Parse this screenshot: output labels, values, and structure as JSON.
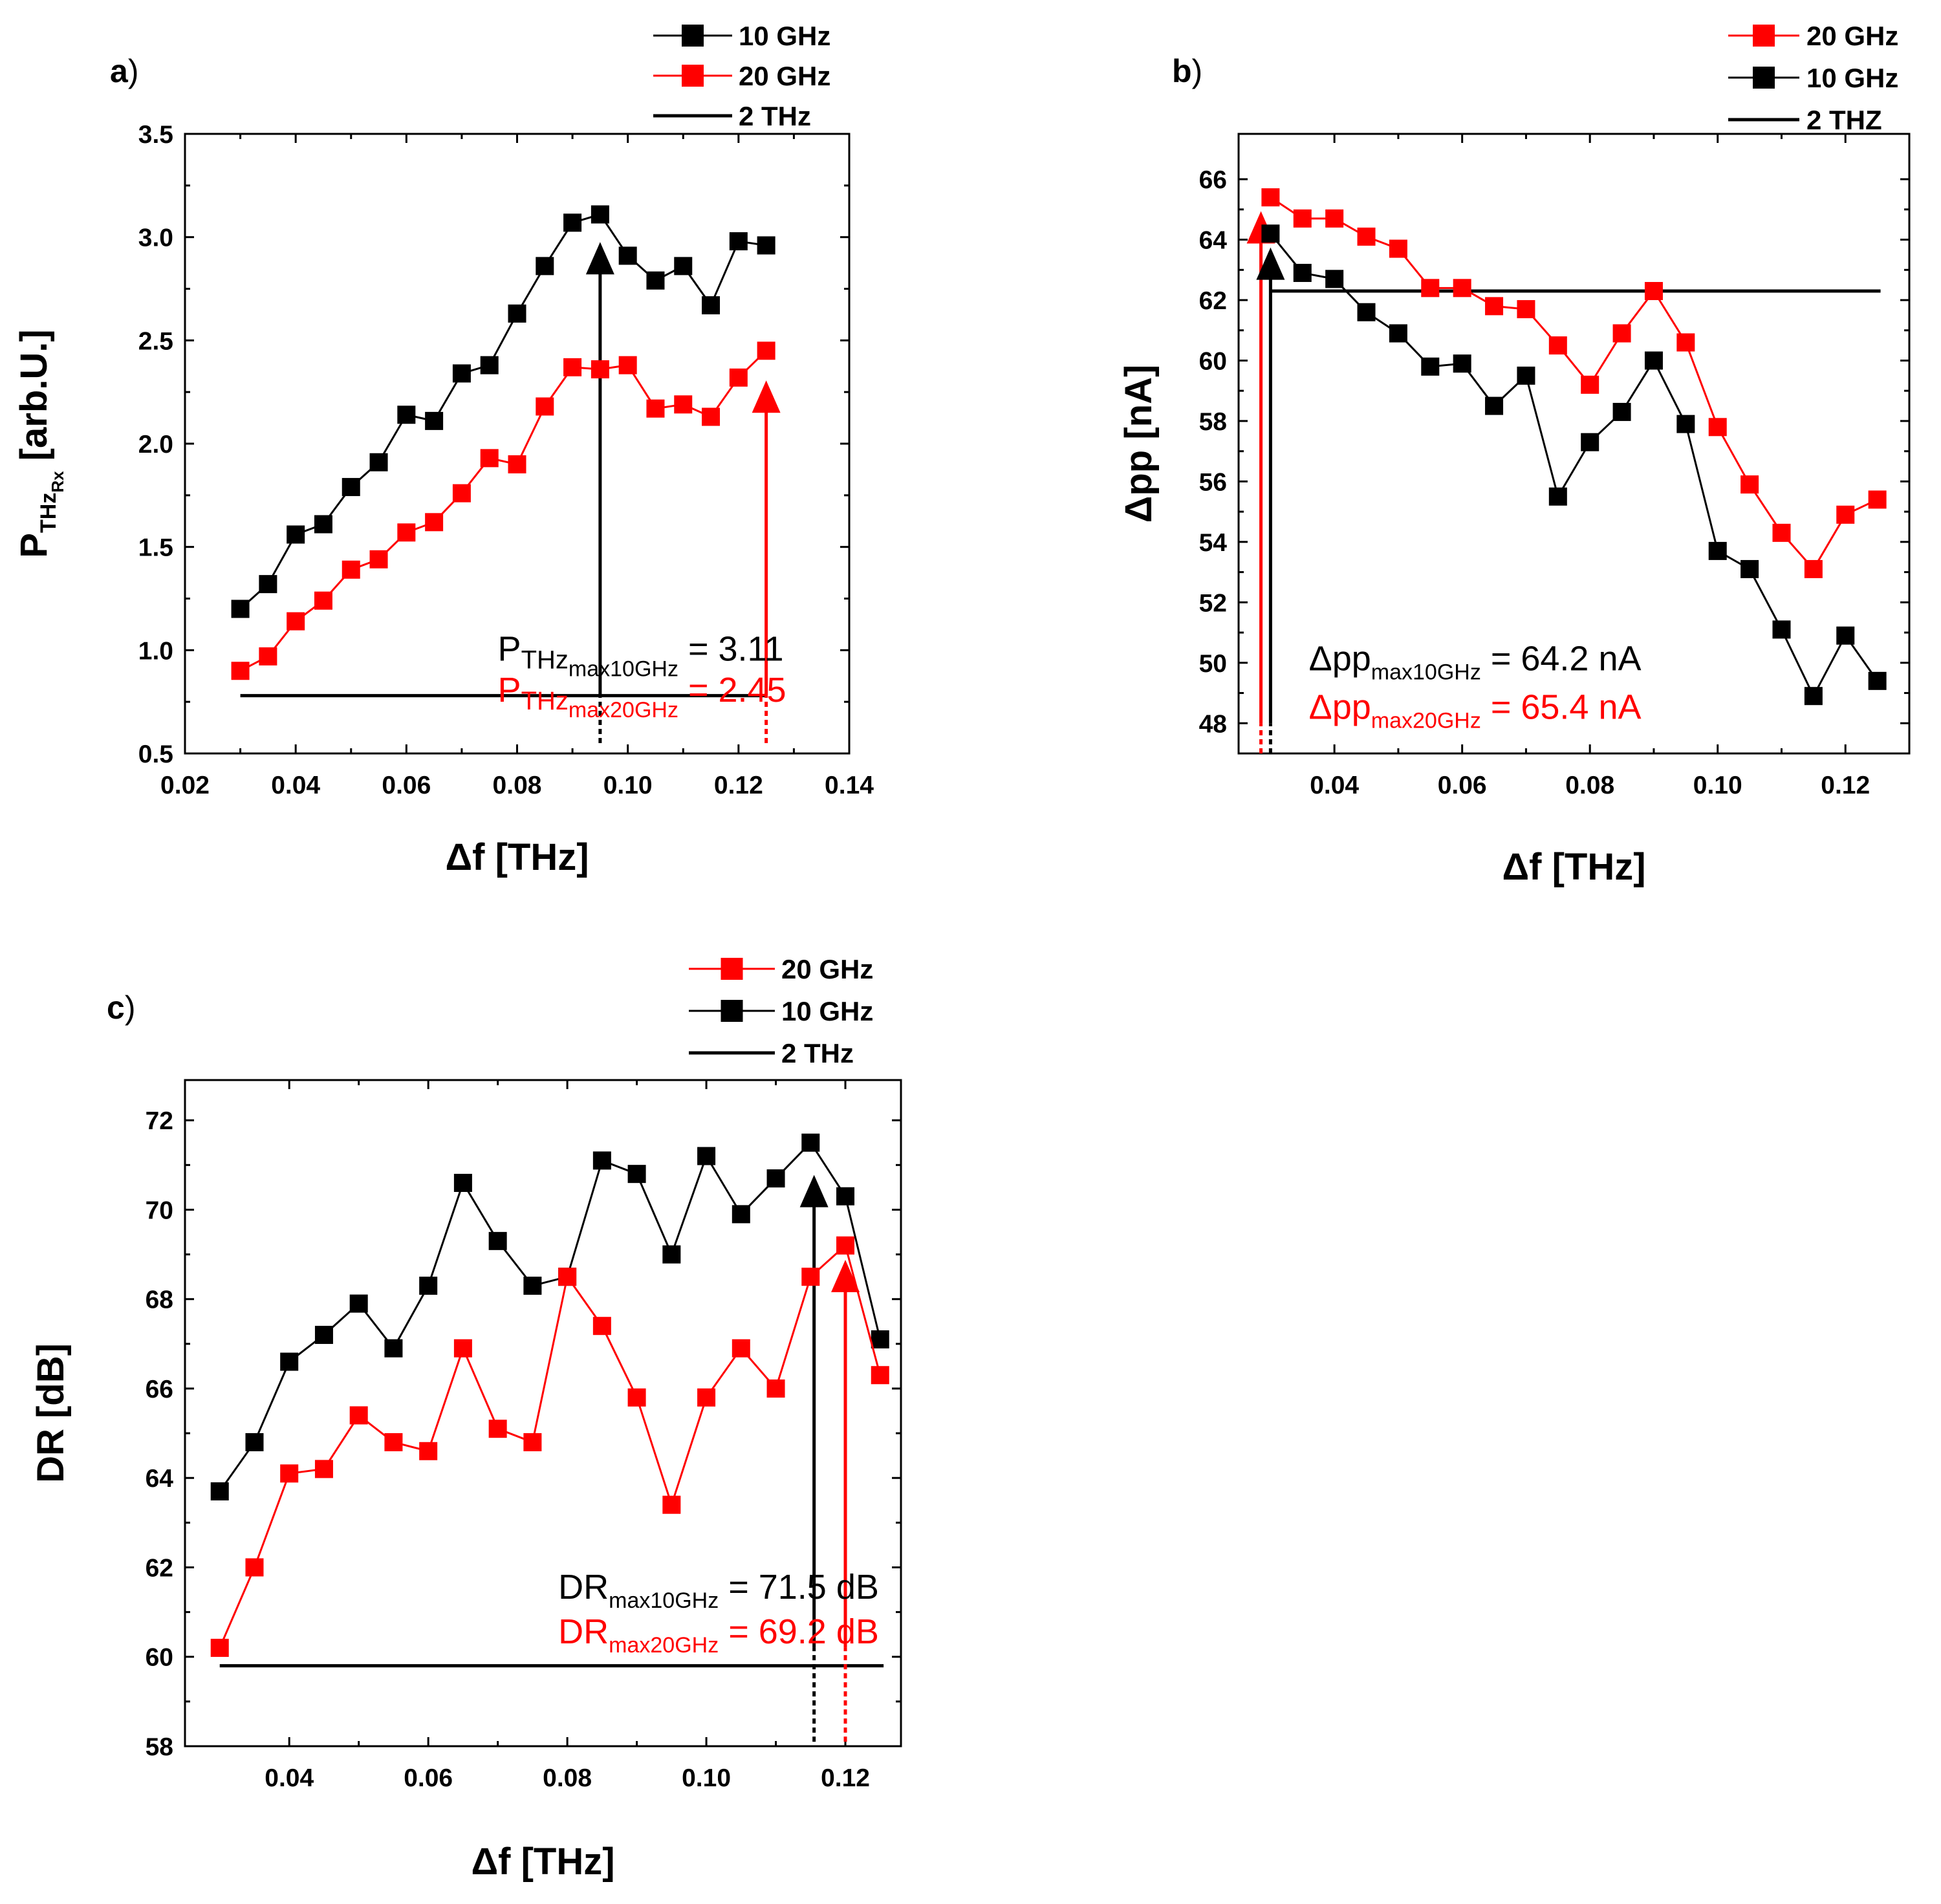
{
  "colors": {
    "black": "#000000",
    "red": "#ff0000"
  },
  "chart_data": [
    {
      "panel": "a",
      "panel_letter": "a",
      "panel_paren": ")",
      "type": "line",
      "xlabel": "Δf [THz]",
      "ylabel_parts": {
        "main": "P",
        "sub": "THz",
        "subsub": "Rx",
        "unit": " [arb.U.]"
      },
      "xlim": [
        0.02,
        0.14
      ],
      "ylim": [
        0.5,
        3.5
      ],
      "xticks": [
        "0.02",
        "0.04",
        "0.06",
        "0.08",
        "0.10",
        "0.12",
        "0.14"
      ],
      "yticks": [
        "0.5",
        "1.0",
        "1.5",
        "2.0",
        "2.5",
        "3.0",
        "3.5"
      ],
      "legend": [
        {
          "label": "10 GHz",
          "color": "#000000",
          "kind": "marker"
        },
        {
          "label": "20 GHz",
          "color": "#ff0000",
          "kind": "marker"
        },
        {
          "label": "2 THz",
          "color": "#000000",
          "kind": "line"
        }
      ],
      "series": [
        {
          "name": "10 GHz",
          "color": "#000000",
          "x": [
            0.03,
            0.035,
            0.04,
            0.045,
            0.05,
            0.055,
            0.06,
            0.065,
            0.07,
            0.075,
            0.08,
            0.085,
            0.09,
            0.095,
            0.1,
            0.105,
            0.11,
            0.115,
            0.12,
            0.125
          ],
          "y": [
            1.2,
            1.32,
            1.56,
            1.61,
            1.79,
            1.91,
            2.14,
            2.11,
            2.34,
            2.38,
            2.63,
            2.86,
            3.07,
            3.11,
            2.91,
            2.79,
            2.86,
            2.67,
            2.98,
            2.96
          ]
        },
        {
          "name": "20 GHz",
          "color": "#ff0000",
          "x": [
            0.03,
            0.035,
            0.04,
            0.045,
            0.05,
            0.055,
            0.06,
            0.065,
            0.07,
            0.075,
            0.08,
            0.085,
            0.09,
            0.095,
            0.1,
            0.105,
            0.11,
            0.115,
            0.12,
            0.125
          ],
          "y": [
            0.9,
            0.97,
            1.14,
            1.24,
            1.39,
            1.44,
            1.57,
            1.62,
            1.76,
            1.93,
            1.9,
            2.18,
            2.37,
            2.36,
            2.38,
            2.17,
            2.19,
            2.13,
            2.32,
            2.45
          ]
        }
      ],
      "hline": {
        "name": "2 THz",
        "y": 0.78,
        "x": [
          0.03,
          0.125
        ]
      },
      "arrows": [
        {
          "color": "#000000",
          "x": 0.095,
          "y_from": 0.78,
          "y_to": 2.97,
          "y_dash": 0.55
        },
        {
          "color": "#ff0000",
          "x": 0.125,
          "y_from": 0.78,
          "y_to": 2.3,
          "y_dash": 0.55
        }
      ],
      "annotations": [
        {
          "color": "#000000",
          "main": "P",
          "sub": "THz",
          "subsub": "max10GHz",
          "value": " = 3.11",
          "x": 0.0765,
          "y": 0.95
        },
        {
          "color": "#ff0000",
          "main": "P",
          "sub": "THz",
          "subsub": "max20GHz",
          "value": " = 2.45",
          "x": 0.0765,
          "y": 0.75
        }
      ]
    },
    {
      "panel": "b",
      "panel_letter": "b",
      "panel_paren": ")",
      "type": "line",
      "xlabel": "Δf [THz]",
      "ylabel": "Δpp [nA]",
      "xlim": [
        0.025,
        0.13
      ],
      "ylim": [
        47,
        67.5
      ],
      "xticks": [
        "0.04",
        "0.06",
        "0.08",
        "0.10",
        "0.12"
      ],
      "yticks": [
        "48",
        "50",
        "52",
        "54",
        "56",
        "58",
        "60",
        "62",
        "64",
        "66"
      ],
      "legend": [
        {
          "label": "20 GHz",
          "color": "#ff0000",
          "kind": "marker"
        },
        {
          "label": "10 GHz",
          "color": "#000000",
          "kind": "marker"
        },
        {
          "label": "2 THZ",
          "color": "#000000",
          "kind": "line"
        }
      ],
      "series": [
        {
          "name": "20 GHz",
          "color": "#ff0000",
          "x": [
            0.03,
            0.035,
            0.04,
            0.045,
            0.05,
            0.055,
            0.06,
            0.065,
            0.07,
            0.075,
            0.08,
            0.085,
            0.09,
            0.095,
            0.1,
            0.105,
            0.11,
            0.115,
            0.12,
            0.125
          ],
          "y": [
            65.4,
            64.7,
            64.7,
            64.1,
            63.7,
            62.4,
            62.4,
            61.8,
            61.7,
            60.5,
            59.2,
            60.9,
            62.3,
            60.6,
            57.8,
            55.9,
            54.3,
            53.1,
            54.9,
            55.4
          ]
        },
        {
          "name": "10 GHz",
          "color": "#000000",
          "x": [
            0.03,
            0.035,
            0.04,
            0.045,
            0.05,
            0.055,
            0.06,
            0.065,
            0.07,
            0.075,
            0.08,
            0.085,
            0.09,
            0.095,
            0.1,
            0.105,
            0.11,
            0.115,
            0.12,
            0.125
          ],
          "y": [
            64.2,
            62.9,
            62.7,
            61.6,
            60.9,
            59.8,
            59.9,
            58.5,
            59.5,
            55.5,
            57.3,
            58.3,
            60.0,
            57.9,
            53.7,
            53.1,
            51.1,
            48.9,
            50.9,
            49.4
          ]
        }
      ],
      "hline": {
        "name": "2 THZ",
        "y": 62.3,
        "x": [
          0.03,
          0.1255
        ]
      },
      "arrows": [
        {
          "color": "#ff0000",
          "x": 0.0285,
          "y_from": 48.0,
          "y_to": 64.9,
          "y_dash": 47.0
        },
        {
          "color": "#000000",
          "x": 0.03,
          "y_from": 48.0,
          "y_to": 63.7,
          "y_dash": 47.0
        }
      ],
      "annotations": [
        {
          "color": "#000000",
          "main": "Δpp",
          "sub": "max10GHz",
          "value": " = 64.2 nA",
          "x": 0.036,
          "y": 49.75
        },
        {
          "color": "#ff0000",
          "main": "Δpp",
          "sub": "max20GHz",
          "value": " = 65.4 nA",
          "x": 0.036,
          "y": 48.15
        }
      ]
    },
    {
      "panel": "c",
      "panel_letter": "c",
      "panel_paren": ")",
      "type": "line",
      "xlabel": "Δf [THz]",
      "ylabel": "DR [dB]",
      "xlim": [
        0.025,
        0.128
      ],
      "ylim": [
        58,
        72.9
      ],
      "xticks": [
        "0.04",
        "0.06",
        "0.08",
        "0.10",
        "0.12"
      ],
      "yticks": [
        "58",
        "60",
        "62",
        "64",
        "66",
        "68",
        "70",
        "72"
      ],
      "legend": [
        {
          "label": "20 GHz",
          "color": "#ff0000",
          "kind": "marker"
        },
        {
          "label": "10 GHz",
          "color": "#000000",
          "kind": "marker"
        },
        {
          "label": "2 THz",
          "color": "#000000",
          "kind": "line"
        }
      ],
      "series": [
        {
          "name": "10 GHz",
          "color": "#000000",
          "x": [
            0.03,
            0.035,
            0.04,
            0.045,
            0.05,
            0.055,
            0.06,
            0.065,
            0.07,
            0.075,
            0.08,
            0.085,
            0.09,
            0.095,
            0.1,
            0.105,
            0.11,
            0.115,
            0.12,
            0.125
          ],
          "y": [
            63.7,
            64.8,
            66.6,
            67.2,
            67.9,
            66.9,
            68.3,
            70.6,
            69.3,
            68.3,
            68.5,
            71.1,
            70.8,
            69.0,
            71.2,
            69.9,
            70.7,
            71.5,
            70.3,
            67.1
          ]
        },
        {
          "name": "20 GHz",
          "color": "#ff0000",
          "x": [
            0.03,
            0.035,
            0.04,
            0.045,
            0.05,
            0.055,
            0.06,
            0.065,
            0.07,
            0.075,
            0.08,
            0.085,
            0.09,
            0.095,
            0.1,
            0.105,
            0.11,
            0.115,
            0.12,
            0.125
          ],
          "y": [
            60.2,
            62.0,
            64.1,
            64.2,
            65.4,
            64.8,
            64.6,
            66.9,
            65.1,
            64.8,
            68.5,
            67.4,
            65.8,
            63.4,
            65.8,
            66.9,
            66.0,
            68.5,
            69.2,
            66.3
          ]
        }
      ],
      "hline": {
        "name": "2 THz",
        "y": 59.8,
        "x": [
          0.03,
          0.1255
        ]
      },
      "arrows": [
        {
          "color": "#000000",
          "x": 0.1155,
          "y_from": 60.2,
          "y_to": 70.75,
          "y_dash": 58.1
        },
        {
          "color": "#ff0000",
          "x": 0.12,
          "y_from": 60.2,
          "y_to": 68.85,
          "y_dash": 58.1
        }
      ],
      "annotations": [
        {
          "color": "#000000",
          "main": "DR",
          "sub": "max10GHz",
          "value": " = 71.5 dB",
          "x": 0.0787,
          "y": 61.3
        },
        {
          "color": "#ff0000",
          "main": "DR",
          "sub": "max20GHz",
          "value": " = 69.2 dB",
          "x": 0.0787,
          "y": 60.3
        }
      ]
    }
  ]
}
